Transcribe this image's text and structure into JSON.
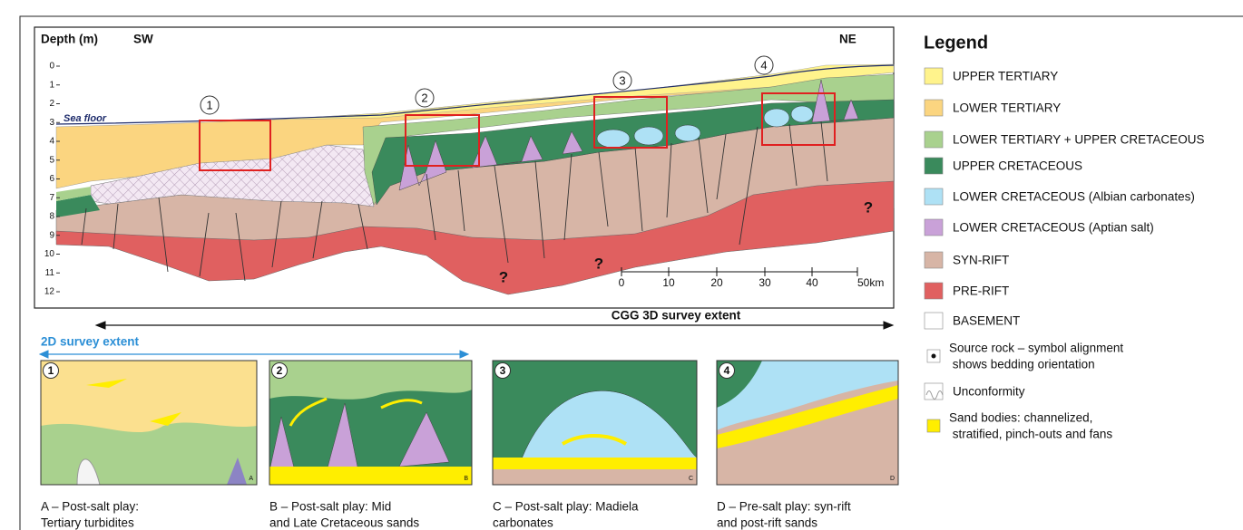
{
  "cross_section": {
    "depth_label": "Depth (m)",
    "sw": "SW",
    "ne": "NE",
    "depth_ticks": [
      "0",
      "1",
      "2",
      "3",
      "4",
      "5",
      "6",
      "7",
      "8",
      "9",
      "10",
      "11",
      "12"
    ],
    "sea_floor": "Sea floor",
    "callouts": [
      "1",
      "2",
      "3",
      "4"
    ],
    "question_marks": [
      "?",
      "?",
      "?"
    ],
    "scale_labels": [
      "0",
      "10",
      "20",
      "30",
      "40",
      "50km"
    ]
  },
  "survey": {
    "cgg_3d": "CGG 3D survey extent",
    "survey_2d": "2D survey extent"
  },
  "panels": [
    {
      "number": "1",
      "letter": "A",
      "caption": [
        "A – Post-salt play:",
        "Tertiary turbidites"
      ]
    },
    {
      "number": "2",
      "letter": "B",
      "caption": [
        "B – Post-salt play: Mid",
        "and Late Cretaceous sands"
      ]
    },
    {
      "number": "3",
      "letter": "C",
      "caption": [
        "C – Post-salt play: Madiela",
        "carbonates"
      ]
    },
    {
      "number": "4",
      "letter": "D",
      "caption": [
        "D – Pre-salt play: syn-rift",
        "and post-rift sands"
      ]
    }
  ],
  "legend": {
    "title": "Legend",
    "items": [
      {
        "lines": [
          "UPPER TERTIARY"
        ],
        "color": "#fff38c"
      },
      {
        "lines": [
          "LOWER TERTIARY"
        ],
        "color": "#fbd580"
      },
      {
        "lines": [
          "LOWER TERTIARY + UPPER CRETACEOUS"
        ],
        "color": "#a9d18e"
      },
      {
        "lines": [
          "UPPER CRETACEOUS"
        ],
        "color": "#3a8a5c"
      },
      {
        "lines": [
          "LOWER CRETACEOUS (Albian carbonates)"
        ],
        "color": "#aee1f5"
      },
      {
        "lines": [
          "LOWER CRETACEOUS (Aptian salt)"
        ],
        "color": "#c9a1d8"
      },
      {
        "lines": [
          "SYN-RIFT"
        ],
        "color": "#d7b5a6"
      },
      {
        "lines": [
          "PRE-RIFT"
        ],
        "color": "#e06060"
      },
      {
        "lines": [
          "BASEMENT"
        ],
        "color": "#ffffff"
      },
      {
        "lines": [
          "Source rock – symbol alignment",
          " shows bedding orientation"
        ],
        "color": "#ffffff"
      },
      {
        "lines": [
          "Unconformity"
        ],
        "color": "#ffffff"
      },
      {
        "lines": [
          "Sand bodies: channelized,",
          " stratified, pinch-outs and fans"
        ],
        "color": "#ffee00"
      }
    ]
  }
}
